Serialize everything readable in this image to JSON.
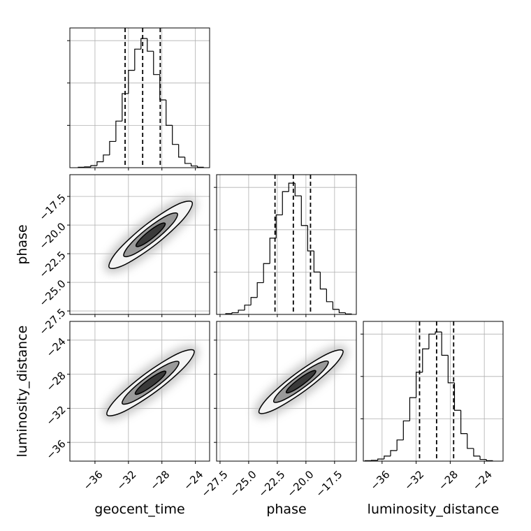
{
  "chart_data": {
    "type": "corner",
    "hist_ylim": [
      0,
      330
    ],
    "hist_yticks": [
      100,
      200,
      300
    ],
    "grid": true,
    "parameters": [
      {
        "name": "geocent_time",
        "lim": [
          -39,
          -22.3
        ],
        "ticks": [
          {
            "value": -36,
            "label": "−36"
          },
          {
            "value": -32,
            "label": "−32"
          },
          {
            "value": -28,
            "label": "−28"
          },
          {
            "value": -24,
            "label": "−24"
          }
        ],
        "bins": [
          -38,
          -37.25,
          -36.5,
          -35.75,
          -35,
          -34.25,
          -33.5,
          -32.75,
          -32,
          -31.25,
          -30.5,
          -29.75,
          -29,
          -28.25,
          -27.5,
          -26.75,
          -26,
          -25.25,
          -24.5,
          -23.75,
          -23
        ],
        "counts": [
          1,
          2,
          5,
          14,
          30,
          62,
          110,
          175,
          230,
          280,
          305,
          275,
          220,
          160,
          100,
          55,
          25,
          10,
          4,
          1
        ],
        "quantiles": [
          -32.4,
          -30.3,
          -28.2
        ]
      },
      {
        "name": "phase",
        "lim": [
          -27.8,
          -15.6
        ],
        "ticks": [
          {
            "value": -27.5,
            "label": "−27.5"
          },
          {
            "value": -25,
            "label": "−25.0"
          },
          {
            "value": -22.5,
            "label": "−22.5"
          },
          {
            "value": -20,
            "label": "−20.0"
          },
          {
            "value": -17.5,
            "label": "−17.5"
          }
        ],
        "bins": [
          -27,
          -26.45,
          -25.9,
          -25.35,
          -24.8,
          -24.25,
          -23.7,
          -23.15,
          -22.6,
          -22.05,
          -21.5,
          -20.95,
          -20.4,
          -19.85,
          -19.3,
          -18.75,
          -18.2,
          -17.65,
          -17.1,
          -16.55,
          -16
        ],
        "counts": [
          2,
          4,
          10,
          22,
          40,
          75,
          120,
          180,
          235,
          290,
          310,
          280,
          210,
          150,
          100,
          60,
          30,
          12,
          4,
          1
        ],
        "quantiles": [
          -22.7,
          -21.1,
          -19.6
        ]
      },
      {
        "name": "luminosity_distance",
        "lim": [
          -38.2,
          -21.8
        ],
        "ticks": [
          {
            "value": -36,
            "label": "−36"
          },
          {
            "value": -32,
            "label": "−32"
          },
          {
            "value": -28,
            "label": "−28"
          },
          {
            "value": -24,
            "label": "−24"
          }
        ],
        "bins": [
          -38,
          -37.25,
          -36.5,
          -35.75,
          -35,
          -34.25,
          -33.5,
          -32.75,
          -32,
          -31.25,
          -30.5,
          -29.75,
          -29,
          -28.25,
          -27.5,
          -26.75,
          -26,
          -25.25,
          -24.5,
          -23.75,
          -23
        ],
        "counts": [
          1,
          2,
          5,
          12,
          25,
          50,
          95,
          150,
          210,
          265,
          300,
          305,
          250,
          185,
          120,
          65,
          30,
          12,
          4,
          1
        ],
        "quantiles": [
          -31.6,
          -29.6,
          -27.6
        ]
      }
    ],
    "panels": [
      {
        "col": 0,
        "row": 1,
        "contours": [
          {
            "x": [
              -24.4,
              -26.34,
              -30.05,
              -33.34,
              -34.3,
              -32.36,
              -28.65,
              -25.36
            ],
            "y": [
              -18.0,
              -18.27,
              -20.05,
              -22.29,
              -23.7,
              -23.43,
              -21.65,
              -19.41
            ]
          },
          {
            "x": [
              -26.15,
              -27.41,
              -29.8,
              -31.93,
              -32.55,
              -31.29,
              -28.9,
              -26.77
            ],
            "y": [
              -19.0,
              -19.17,
              -20.33,
              -21.79,
              -22.7,
              -22.53,
              -21.37,
              -19.91
            ]
          },
          {
            "x": [
              -27.62,
              -28.31,
              -29.6,
              -30.75,
              -31.08,
              -30.39,
              -29.1,
              -27.95
            ],
            "y": [
              -19.85,
              -19.94,
              -20.57,
              -21.36,
              -21.85,
              -21.76,
              -21.13,
              -20.34
            ]
          }
        ]
      },
      {
        "col": 0,
        "row": 2,
        "contours": [
          {
            "x": [
              -24.17,
              -26.18,
              -30.06,
              -33.52,
              -34.55,
              -32.54,
              -28.66,
              -25.2
            ],
            "y": [
              -25.23,
              -25.62,
              -28.0,
              -30.96,
              -32.77,
              -32.38,
              -30.0,
              -27.04
            ]
          },
          {
            "x": [
              -25.99,
              -27.31,
              -29.82,
              -32.07,
              -32.73,
              -31.41,
              -28.9,
              -26.65
            ],
            "y": [
              -26.55,
              -26.81,
              -28.35,
              -30.27,
              -31.45,
              -31.19,
              -29.65,
              -27.73
            ]
          },
          {
            "x": [
              -27.54,
              -28.25,
              -29.61,
              -30.83,
              -31.18,
              -30.47,
              -29.11,
              -27.89
            ],
            "y": [
              -27.68,
              -27.82,
              -28.65,
              -29.68,
              -30.32,
              -30.18,
              -29.35,
              -28.32
            ]
          }
        ]
      },
      {
        "col": 1,
        "row": 2,
        "contours": [
          {
            "x": [
              -16.78,
              -18.2,
              -20.93,
              -23.36,
              -24.08,
              -22.66,
              -19.93,
              -17.5
            ],
            "y": [
              -25.23,
              -25.66,
              -27.98,
              -30.82,
              -32.53,
              -32.1,
              -29.78,
              -26.94
            ]
          },
          {
            "x": [
              -18.06,
              -18.98,
              -20.76,
              -22.34,
              -22.8,
              -21.88,
              -20.1,
              -18.52
            ],
            "y": [
              -26.51,
              -26.78,
              -28.29,
              -30.14,
              -31.25,
              -30.98,
              -29.47,
              -27.62
            ]
          },
          {
            "x": [
              -19.15,
              -19.66,
              -20.61,
              -21.46,
              -21.71,
              -21.2,
              -20.25,
              -19.4
            ],
            "y": [
              -27.6,
              -27.75,
              -28.56,
              -29.55,
              -30.16,
              -30.01,
              -29.2,
              -28.21
            ]
          }
        ]
      }
    ]
  }
}
